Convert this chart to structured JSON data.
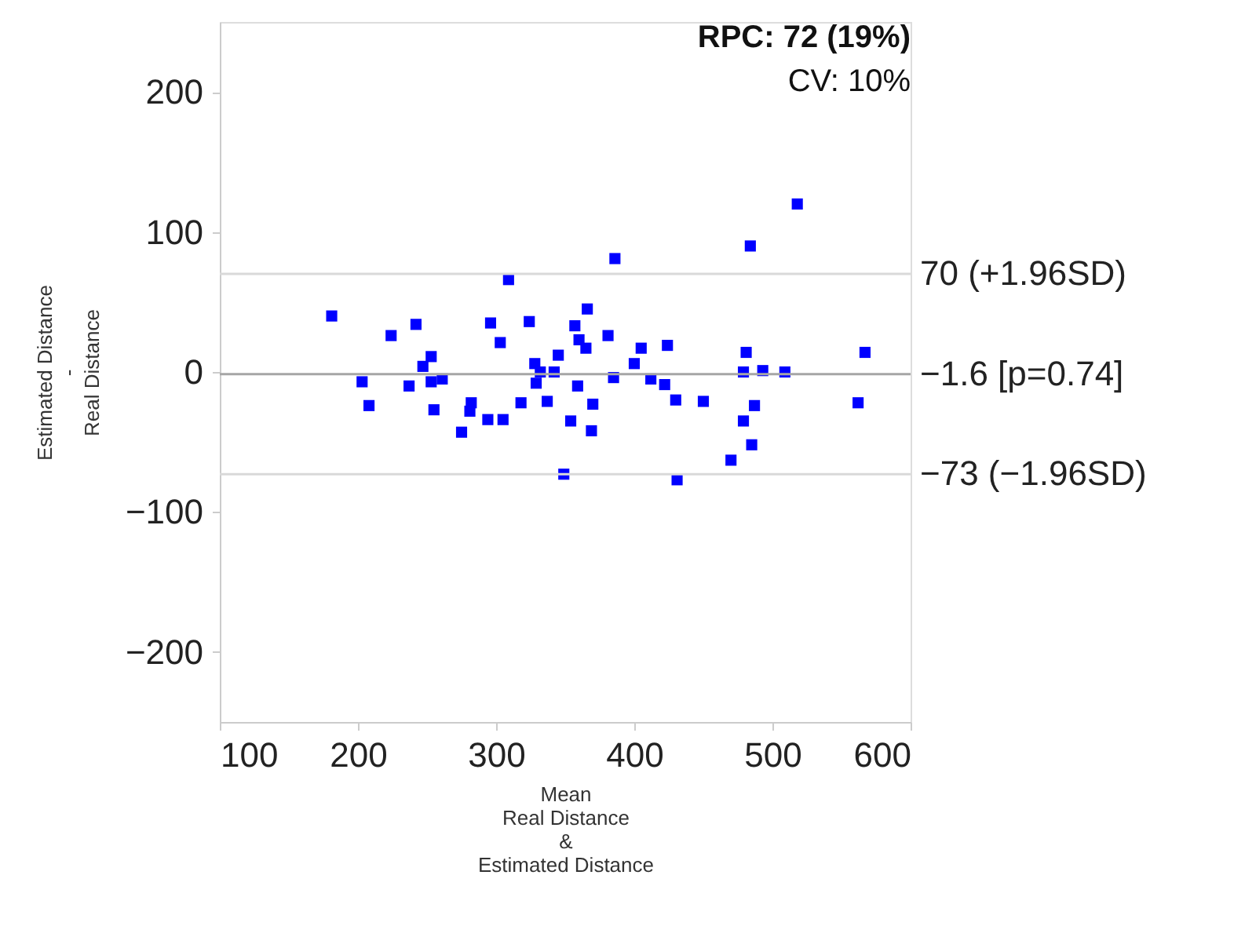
{
  "chart_data": {
    "type": "scatter",
    "xlabel": "Mean\nReal Distance\n&\nEstimated Distance",
    "ylabel": "Estimated Distance\n-\nReal Distance",
    "x": [
      181,
      203,
      208,
      224,
      237,
      242,
      247,
      253,
      253,
      261,
      255,
      275,
      282,
      281,
      294,
      305,
      309,
      296,
      303,
      318,
      324,
      328,
      329,
      332,
      342,
      345,
      337,
      354,
      349,
      357,
      360,
      365,
      366,
      359,
      370,
      369,
      386,
      381,
      385,
      400,
      405,
      412,
      422,
      424,
      430,
      431,
      450,
      470,
      479,
      485,
      487,
      479,
      481,
      484,
      493,
      509,
      518,
      561,
      562,
      567
    ],
    "series": [
      {
        "color": "#0000ff",
        "values": [
          40,
          -7,
          -24,
          26,
          -10,
          34,
          4,
          11,
          -7,
          -5,
          -27,
          -43,
          -22,
          -28,
          -34,
          -34,
          66,
          35,
          21,
          -22,
          36,
          6,
          -8,
          0,
          0,
          12,
          -21,
          -35,
          -73,
          33,
          23,
          17,
          45,
          -10,
          -23,
          -42,
          81,
          26,
          -4,
          6,
          17,
          -5,
          -9,
          19,
          -20,
          -77,
          -21,
          -63,
          -35,
          -52,
          -24,
          0,
          14,
          90,
          1,
          0,
          120,
          null,
          -22,
          14
        ]
      }
    ],
    "marker": "square",
    "xlim": [
      100,
      600
    ],
    "xticks": [
      100,
      200,
      300,
      400,
      500,
      600
    ],
    "ylim": [
      -250,
      250
    ],
    "yticks": [
      -200,
      -100,
      0,
      100,
      200
    ],
    "grid": false,
    "ref_lines": [
      {
        "axis": "y",
        "value": 70,
        "label": "70 (+1.96SD)",
        "color": "#d9d9d9"
      },
      {
        "axis": "y",
        "value": -1.6,
        "label": "−1.6 [p=0.74]",
        "color": "#a6a6a6"
      },
      {
        "axis": "y",
        "value": -73,
        "label": "−73 (−1.96SD)",
        "color": "#d9d9d9"
      }
    ],
    "annotations": [
      "RPC: 72 (19%)",
      "CV: 10%"
    ]
  }
}
